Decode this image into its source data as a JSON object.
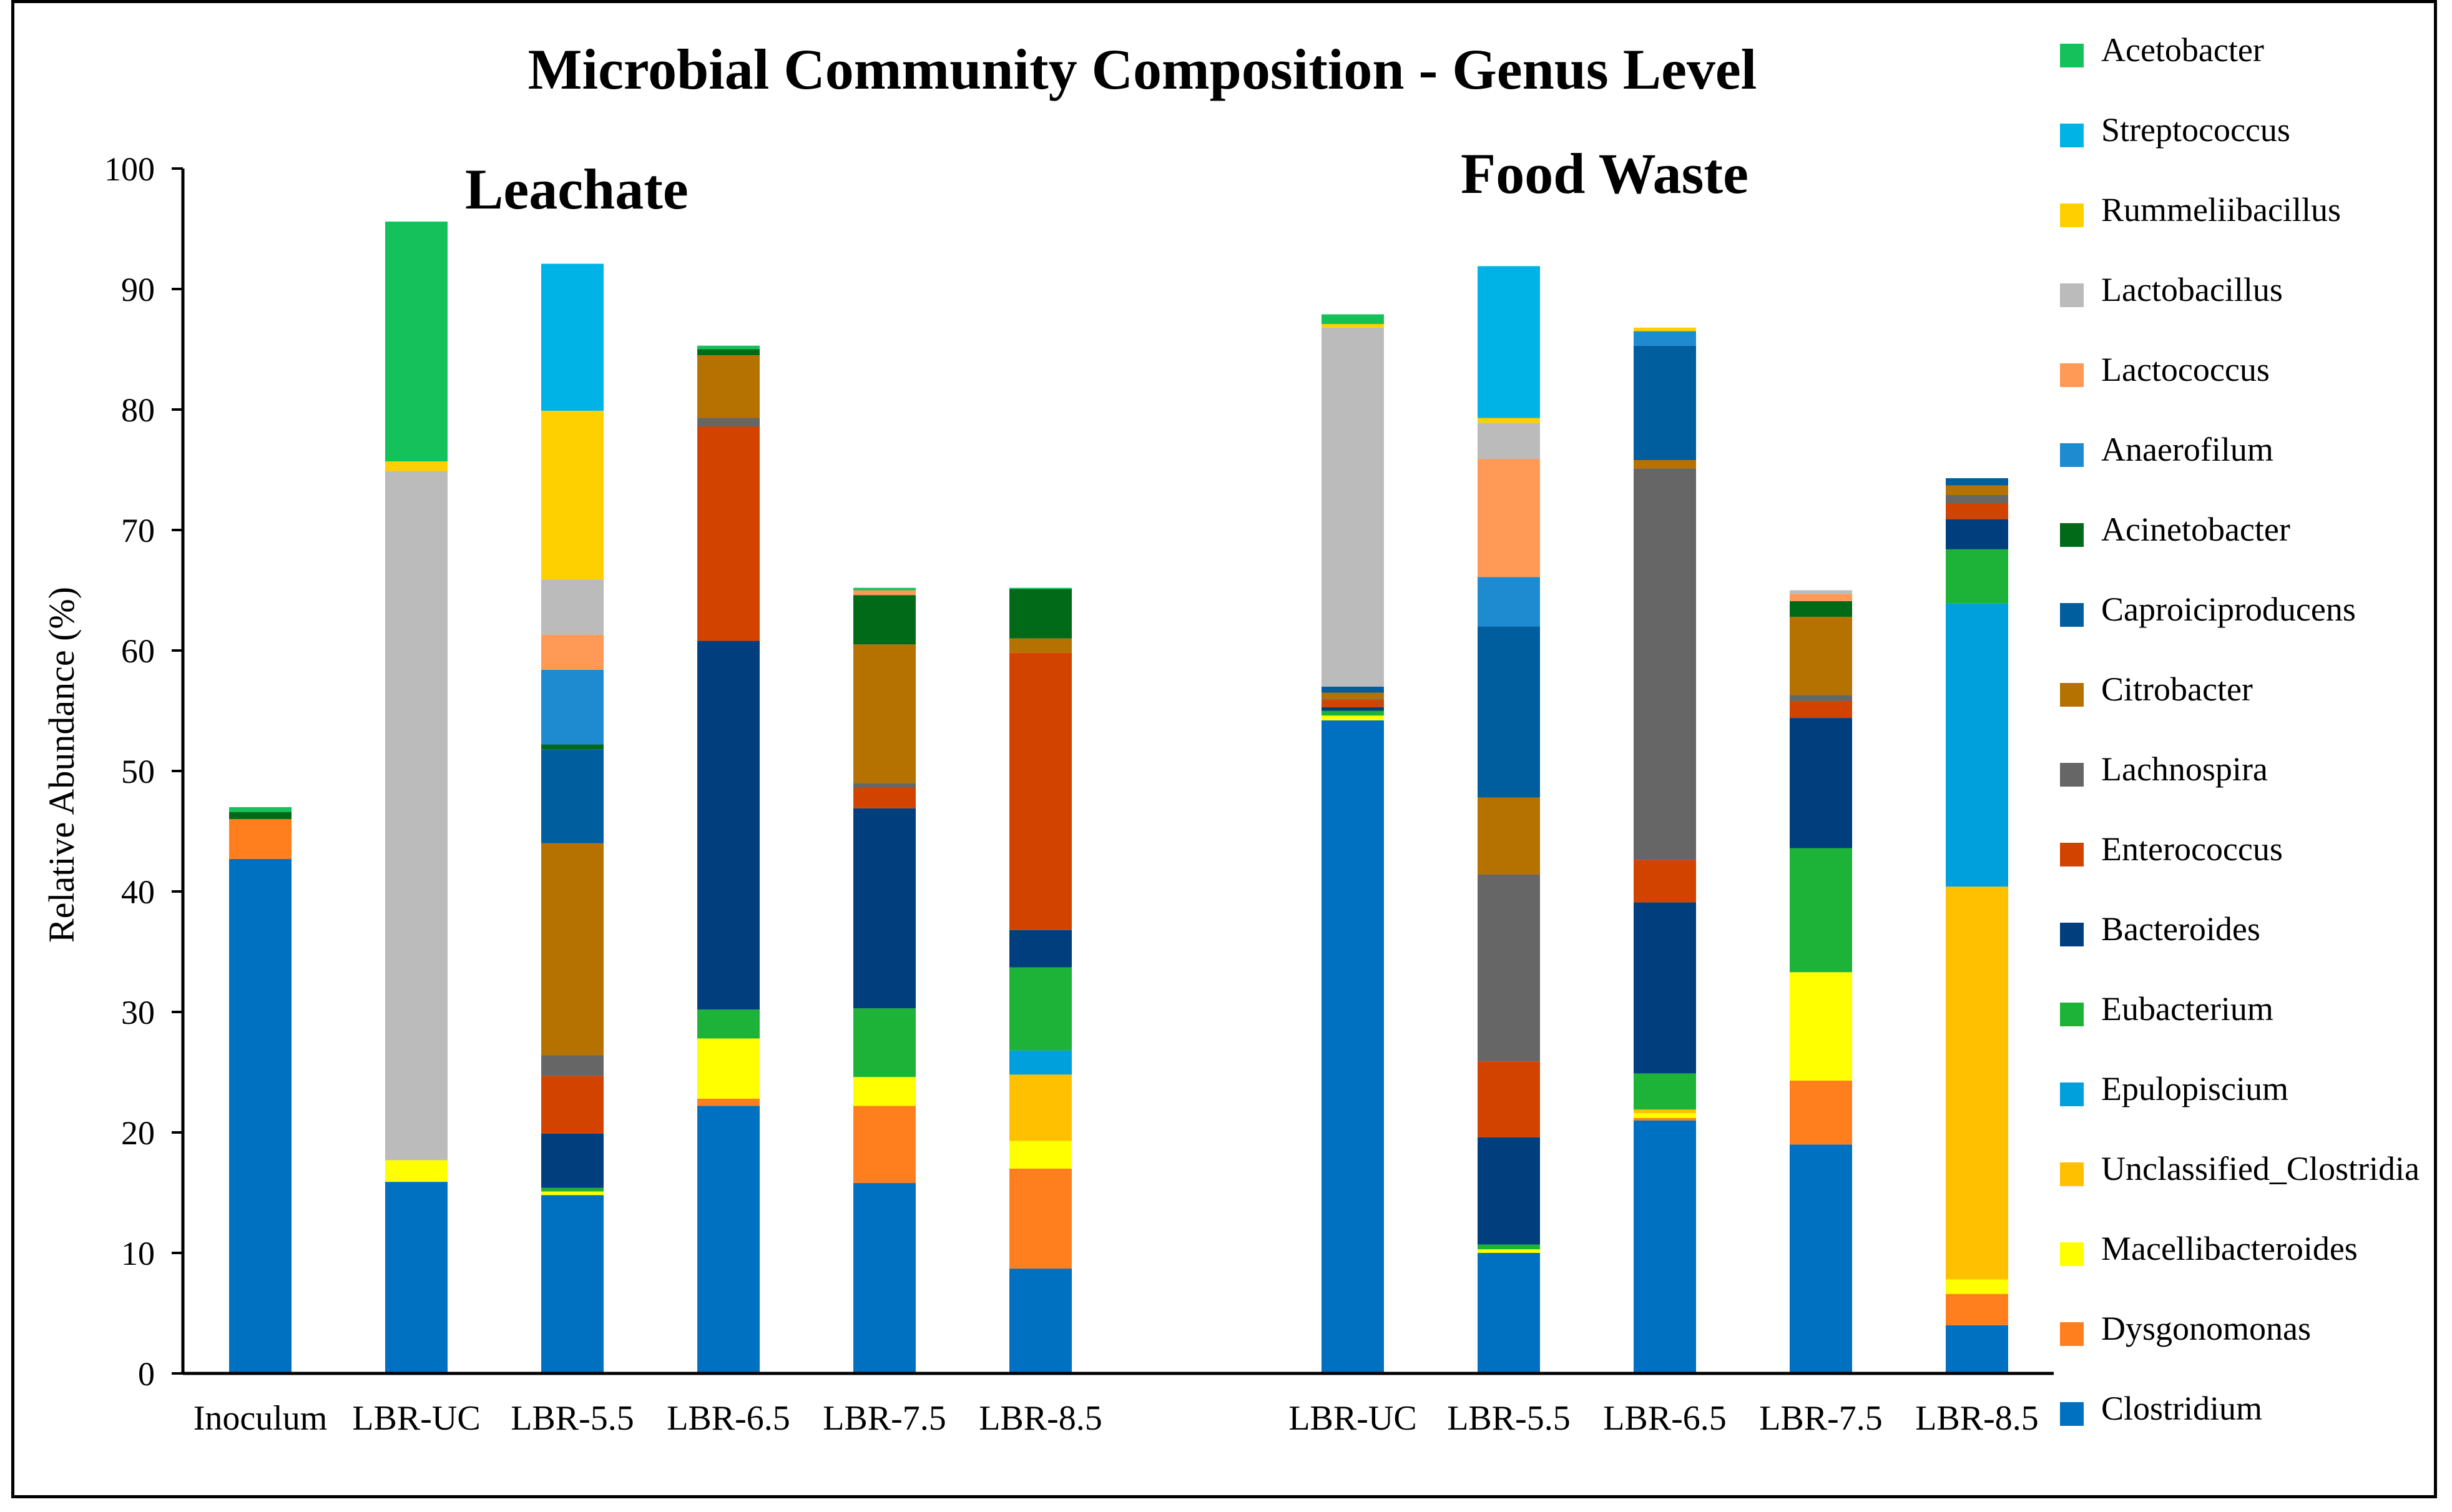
{
  "chart_data": {
    "type": "bar",
    "stacked": true,
    "title": "Microbial Community Composition - Genus Level",
    "ylabel": "Relative Abundance (%)",
    "xlabel": "",
    "ylim": [
      0,
      100
    ],
    "yticks": [
      0,
      10,
      20,
      30,
      40,
      50,
      60,
      70,
      80,
      90,
      100
    ],
    "grid": false,
    "legend_position": "right",
    "groups": [
      {
        "label": "Leachate",
        "categories": [
          "Inoculum",
          "LBR-UC",
          "LBR-5.5",
          "LBR-6.5",
          "LBR-7.5",
          "LBR-8.5"
        ]
      },
      {
        "label": "Food Waste",
        "categories": [
          "LBR-UC",
          "LBR-5.5",
          "LBR-6.5",
          "LBR-7.5",
          "LBR-8.5"
        ]
      }
    ],
    "categories": [
      "Inoculum",
      "LBR-UC",
      "LBR-5.5",
      "LBR-6.5",
      "LBR-7.5",
      "LBR-8.5",
      "LBR-UC",
      "LBR-5.5",
      "LBR-6.5",
      "LBR-7.5",
      "LBR-8.5"
    ],
    "series": [
      {
        "name": "Clostridium",
        "color": "#0070C0",
        "values": [
          42.7,
          15.9,
          14.8,
          22.2,
          15.8,
          8.7,
          54.2,
          10.0,
          21.0,
          19.0,
          4.0
        ]
      },
      {
        "name": "Dysgonomonas",
        "color": "#FF7F1E",
        "values": [
          3.3,
          0,
          0,
          0.6,
          6.4,
          8.3,
          0,
          0,
          0.2,
          5.3,
          2.6
        ]
      },
      {
        "name": "Macellibacteroides",
        "color": "#FFFF00",
        "values": [
          0,
          1.8,
          0.3,
          5.0,
          2.4,
          2.3,
          0.4,
          0.3,
          0.4,
          9.0,
          1.2
        ]
      },
      {
        "name": "Unclassified_Clostridia",
        "color": "#FFC000",
        "values": [
          0,
          0,
          0,
          0,
          0,
          5.5,
          0,
          0,
          0.3,
          0,
          32.6
        ]
      },
      {
        "name": "Epulopiscium",
        "color": "#00A0DC",
        "values": [
          0,
          0,
          0,
          0,
          0,
          2.0,
          0,
          0,
          0,
          0,
          23.5
        ]
      },
      {
        "name": "Eubacterium",
        "color": "#1DB238",
        "values": [
          0,
          0,
          0.3,
          2.4,
          5.7,
          6.9,
          0.4,
          0.4,
          3.0,
          10.3,
          4.5
        ]
      },
      {
        "name": "Bacteroides",
        "color": "#003E7E",
        "values": [
          0,
          0,
          4.5,
          30.6,
          16.6,
          3.1,
          0.3,
          8.9,
          14.2,
          10.8,
          2.5
        ]
      },
      {
        "name": "Enterococcus",
        "color": "#D24300",
        "values": [
          0,
          0,
          4.8,
          17.8,
          1.7,
          23.0,
          0.6,
          6.3,
          3.5,
          1.4,
          1.3
        ]
      },
      {
        "name": "Lachnospira",
        "color": "#666666",
        "values": [
          0,
          0,
          1.7,
          0.7,
          0.4,
          0,
          0.1,
          15.5,
          32.5,
          0.5,
          0.7
        ]
      },
      {
        "name": "Citrobacter",
        "color": "#B57200",
        "values": [
          0,
          0,
          17.6,
          5.2,
          11.5,
          1.2,
          0.5,
          6.4,
          0.7,
          6.5,
          0.8
        ]
      },
      {
        "name": "Caproiciproducens",
        "color": "#005E9E",
        "values": [
          0,
          0,
          7.8,
          0,
          0,
          0,
          0.5,
          14.2,
          9.5,
          0,
          0.6
        ]
      },
      {
        "name": "Acinetobacter",
        "color": "#006A19",
        "values": [
          0.6,
          0,
          0.4,
          0.5,
          4.1,
          4.1,
          0,
          0,
          0,
          1.3,
          0
        ]
      },
      {
        "name": "Anaerofilum",
        "color": "#1E8AD0",
        "values": [
          0,
          0,
          6.2,
          0,
          0,
          0,
          0,
          4.1,
          1.2,
          0,
          0
        ]
      },
      {
        "name": "Lactococcus",
        "color": "#FF9955",
        "values": [
          0,
          0,
          2.9,
          0,
          0.4,
          0,
          0,
          9.8,
          0,
          0.6,
          0
        ]
      },
      {
        "name": "Lactobacillus",
        "color": "#BBBBBB",
        "values": [
          0,
          57.2,
          4.6,
          0,
          0,
          0,
          29.8,
          3.0,
          0,
          0.3,
          0
        ]
      },
      {
        "name": "Rummeliibacillus",
        "color": "#FFD000",
        "values": [
          0,
          0.8,
          14.0,
          0,
          0,
          0,
          0.3,
          0.4,
          0.3,
          0,
          0
        ]
      },
      {
        "name": "Streptococcus",
        "color": "#00B3E6",
        "values": [
          0,
          0,
          12.2,
          0,
          0,
          0,
          0,
          12.6,
          0,
          0,
          0
        ]
      },
      {
        "name": "Acetobacter",
        "color": "#15C15B",
        "values": [
          0.4,
          19.9,
          0,
          0.3,
          0.2,
          0.1,
          0.8,
          0,
          0,
          0,
          0
        ]
      }
    ]
  }
}
